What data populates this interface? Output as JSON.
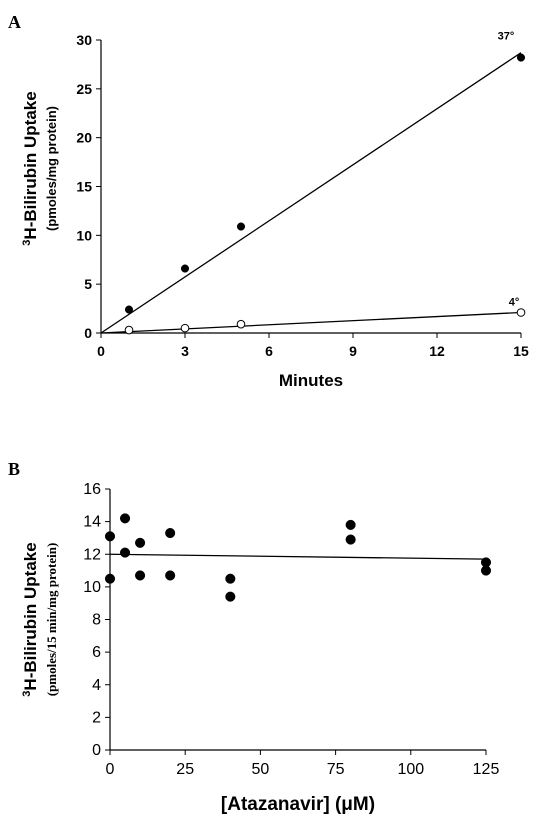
{
  "chart_data": [
    {
      "panel": "A",
      "type": "scatter",
      "xlabel": "Minutes",
      "ylabel": "H-Bilirubin Uptake",
      "ylabel_superscript": "3",
      "ylabel_sub": "(pmoles/mg protein)",
      "xlim": [
        0,
        15
      ],
      "ylim": [
        0,
        30
      ],
      "xticks": [
        0,
        3,
        6,
        9,
        12,
        15
      ],
      "yticks": [
        0,
        5,
        10,
        15,
        20,
        25,
        30
      ],
      "series": [
        {
          "name": "37°",
          "marker": "filled-circle",
          "x": [
            1,
            3,
            5,
            15
          ],
          "y": [
            2.4,
            6.6,
            10.9,
            28.2
          ],
          "fit": {
            "x": [
              0,
              15
            ],
            "y": [
              0,
              28.7
            ]
          }
        },
        {
          "name": "4°",
          "marker": "open-circle",
          "x": [
            1,
            3,
            5,
            15
          ],
          "y": [
            0.3,
            0.5,
            0.9,
            2.1
          ],
          "fit": {
            "x": [
              0,
              15
            ],
            "y": [
              0,
              2.1
            ]
          }
        }
      ]
    },
    {
      "panel": "B",
      "type": "scatter",
      "xlabel": "[Atazanavir] (μM)",
      "ylabel": "H-Bilirubin Uptake",
      "ylabel_superscript": "3",
      "ylabel_sub": "(pmoles/15 min/mg protein)",
      "xlim": [
        0,
        125
      ],
      "ylim": [
        0,
        16
      ],
      "xticks": [
        0,
        25,
        50,
        75,
        100,
        125
      ],
      "yticks": [
        0,
        2,
        4,
        6,
        8,
        10,
        12,
        14,
        16
      ],
      "series": [
        {
          "name": "",
          "marker": "filled-circle",
          "x": [
            0,
            0,
            5,
            5,
            10,
            10,
            20,
            20,
            40,
            40,
            80,
            80,
            125,
            125
          ],
          "y": [
            13.1,
            10.5,
            14.2,
            12.1,
            12.7,
            10.7,
            13.3,
            10.7,
            10.5,
            9.4,
            13.8,
            12.9,
            11.5,
            11.0
          ],
          "fit": {
            "x": [
              0,
              125
            ],
            "y": [
              12.0,
              11.7
            ]
          }
        }
      ]
    }
  ]
}
